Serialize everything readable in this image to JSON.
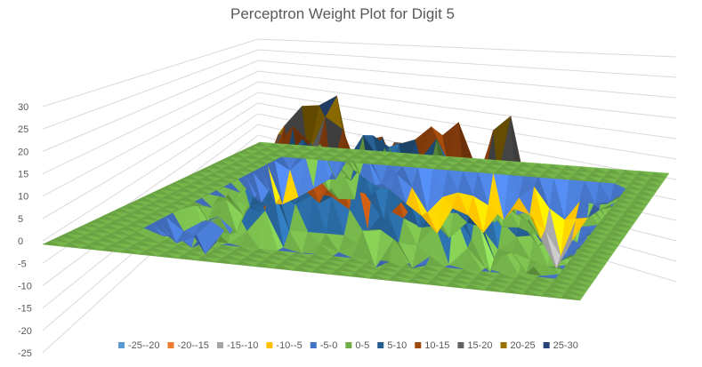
{
  "chart_data": {
    "type": "surface",
    "title": "Perceptron Weight Plot for Digit 5",
    "zlim": [
      -25,
      30
    ],
    "z_ticks": [
      "30",
      "25",
      "20",
      "15",
      "10",
      "5",
      "0",
      "-5",
      "-10",
      "-15",
      "-20",
      "-25"
    ],
    "grid": true,
    "legend_position": "bottom",
    "bands": [
      {
        "label": "-25--20",
        "color": "#5b9bd5"
      },
      {
        "label": "-20--15",
        "color": "#ed7d31"
      },
      {
        "label": "-15--10",
        "color": "#a5a5a5"
      },
      {
        "label": "-10--5",
        "color": "#ffc000"
      },
      {
        "label": "-5-0",
        "color": "#4472c4"
      },
      {
        "label": "0-5",
        "color": "#70ad47"
      },
      {
        "label": "5-10",
        "color": "#255e91"
      },
      {
        "label": "10-15",
        "color": "#9e480e"
      },
      {
        "label": "15-20",
        "color": "#636363"
      },
      {
        "label": "20-25",
        "color": "#997300"
      },
      {
        "label": "25-30",
        "color": "#264478"
      }
    ],
    "peaks": [
      {
        "x": 0.77,
        "y": 0.38,
        "z": 26
      },
      {
        "x": 0.34,
        "y": 0.38,
        "z": 24
      },
      {
        "x": 0.42,
        "y": 0.4,
        "z": 22
      },
      {
        "x": 0.3,
        "y": 0.52,
        "z": 18
      },
      {
        "x": 0.55,
        "y": 0.44,
        "z": 18
      },
      {
        "x": 0.48,
        "y": 0.3,
        "z": 16
      },
      {
        "x": 0.6,
        "y": 0.62,
        "z": 15
      },
      {
        "x": 0.25,
        "y": 0.65,
        "z": 12
      },
      {
        "x": 0.7,
        "y": 0.25,
        "z": 12
      },
      {
        "x": 0.38,
        "y": 0.72,
        "z": 10
      },
      {
        "x": 0.52,
        "y": 0.68,
        "z": 14
      },
      {
        "x": 0.65,
        "y": 0.45,
        "z": 13
      },
      {
        "x": 0.45,
        "y": 0.55,
        "z": 15
      },
      {
        "x": 0.58,
        "y": 0.3,
        "z": 11
      },
      {
        "x": 0.36,
        "y": 0.25,
        "z": 12
      },
      {
        "x": 0.82,
        "y": 0.6,
        "z": 8
      },
      {
        "x": 0.2,
        "y": 0.4,
        "z": 6
      },
      {
        "x": 0.5,
        "y": 0.82,
        "z": -14
      },
      {
        "x": 0.78,
        "y": 0.8,
        "z": -15
      },
      {
        "x": 0.62,
        "y": 0.85,
        "z": -11
      },
      {
        "x": 0.15,
        "y": 0.78,
        "z": -9
      },
      {
        "x": 0.12,
        "y": 0.7,
        "z": -7
      },
      {
        "x": 0.4,
        "y": 0.88,
        "z": -6
      },
      {
        "x": 0.88,
        "y": 0.45,
        "z": -6
      },
      {
        "x": 0.2,
        "y": 0.3,
        "z": -5
      }
    ]
  }
}
